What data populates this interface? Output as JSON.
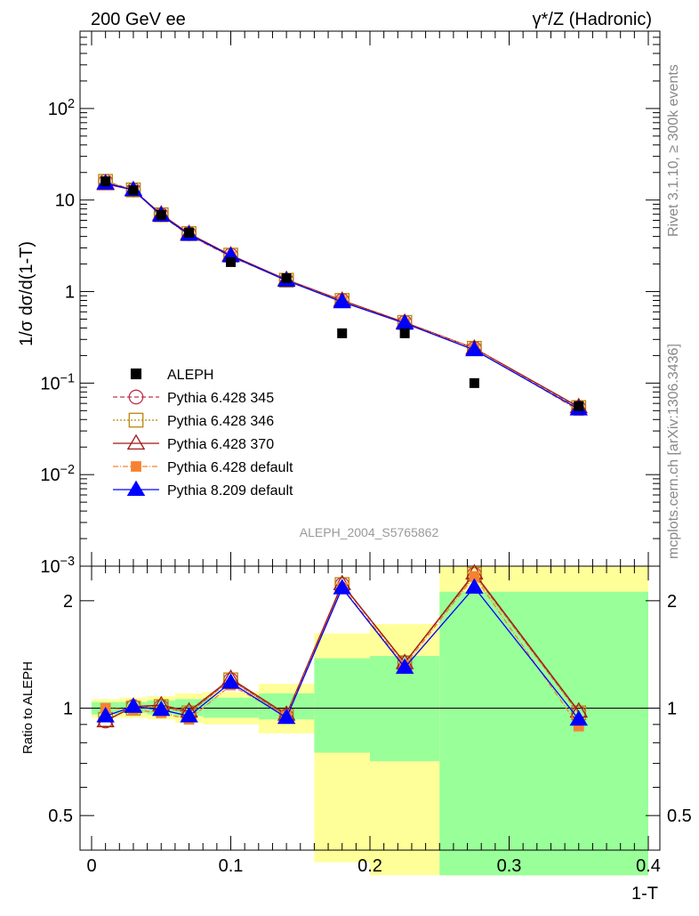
{
  "header": {
    "left": "200 GeV ee",
    "right_pre": "γ*/Z (Hadronic)"
  },
  "side_labels": {
    "top": "Rivet 3.1.10, ≥ 300k events",
    "bottom": "mcplots.cern.ch [arXiv:1306.3436]"
  },
  "chart_data": [
    {
      "type": "line",
      "scale": "log",
      "title": "ALEPH_2004_S5765862",
      "xlabel": "1-T",
      "ylabel": "1/σ  dσ/d(1-T)",
      "xlim": [
        0,
        0.4
      ],
      "ylim": [
        0.001,
        700
      ],
      "y_ticks": [
        {
          "v": 100,
          "label": "10^2"
        },
        {
          "v": 10,
          "label": "10"
        },
        {
          "v": 1,
          "label": "1"
        },
        {
          "v": 0.1,
          "label": "10^-1"
        },
        {
          "v": 0.01,
          "label": "10^-2"
        },
        {
          "v": 0.001,
          "label": "10^-3"
        }
      ],
      "x": [
        0.01,
        0.03,
        0.05,
        0.07,
        0.1,
        0.14,
        0.18,
        0.225,
        0.275,
        0.35
      ],
      "data": {
        "name": "ALEPH",
        "values": [
          16.0,
          12.8,
          6.9,
          4.4,
          2.1,
          1.4,
          0.35,
          0.35,
          0.1,
          0.056
        ]
      },
      "series": [
        {
          "name": "Pythia 6.428 345",
          "color": "#c0304a",
          "marker": "open-circle",
          "dash": "5,3",
          "values": [
            16.0,
            12.9,
            6.9,
            4.3,
            2.5,
            1.33,
            0.8,
            0.46,
            0.24,
            0.054
          ]
        },
        {
          "name": "Pythia 6.428 346",
          "color": "#b8860b",
          "marker": "open-square",
          "dash": "2,2",
          "values": [
            16.0,
            12.9,
            6.9,
            4.3,
            2.5,
            1.33,
            0.8,
            0.46,
            0.24,
            0.054
          ]
        },
        {
          "name": "Pythia 6.428 370",
          "color": "#a01818",
          "marker": "open-triangle",
          "dash": "",
          "values": [
            15.0,
            12.9,
            7.0,
            4.3,
            2.5,
            1.35,
            0.8,
            0.46,
            0.24,
            0.055
          ]
        },
        {
          "name": "Pythia 6.428 default",
          "color": "#f58231",
          "marker": "filled-square",
          "dash": "6,2,1,2",
          "values": [
            16.0,
            12.7,
            6.8,
            4.1,
            2.4,
            1.33,
            0.78,
            0.45,
            0.24,
            0.05
          ]
        },
        {
          "name": "Pythia 8.209 default",
          "color": "#0000ff",
          "marker": "filled-triangle",
          "dash": "",
          "values": [
            15.3,
            12.9,
            6.8,
            4.2,
            2.45,
            1.32,
            0.77,
            0.45,
            0.23,
            0.052
          ]
        }
      ]
    },
    {
      "type": "line",
      "scale": "log",
      "ylabel": "Ratio to ALEPH",
      "xlabel": "1-T",
      "xlim": [
        0,
        0.4
      ],
      "ylim": [
        0.4,
        2.5
      ],
      "x_ticks": [
        "0",
        "0.1",
        "0.2",
        "0.3",
        "0.4"
      ],
      "y_ticks": [
        {
          "v": 2,
          "label": "2"
        },
        {
          "v": 1,
          "label": "1"
        },
        {
          "v": 0.5,
          "label": "0.5"
        }
      ],
      "bands": [
        {
          "x0": 0.0,
          "x1": 0.02,
          "stat": [
            0.96,
            1.04
          ],
          "syst": [
            0.94,
            1.06
          ]
        },
        {
          "x0": 0.02,
          "x1": 0.04,
          "stat": [
            0.97,
            1.04
          ],
          "syst": [
            0.94,
            1.07
          ]
        },
        {
          "x0": 0.04,
          "x1": 0.06,
          "stat": [
            0.96,
            1.05
          ],
          "syst": [
            0.93,
            1.08
          ]
        },
        {
          "x0": 0.06,
          "x1": 0.08,
          "stat": [
            0.95,
            1.06
          ],
          "syst": [
            0.91,
            1.1
          ]
        },
        {
          "x0": 0.08,
          "x1": 0.12,
          "stat": [
            0.94,
            1.07
          ],
          "syst": [
            0.9,
            1.11
          ]
        },
        {
          "x0": 0.12,
          "x1": 0.16,
          "stat": [
            0.93,
            1.1
          ],
          "syst": [
            0.85,
            1.17
          ]
        },
        {
          "x0": 0.16,
          "x1": 0.2,
          "stat": [
            0.75,
            1.38
          ],
          "syst": [
            0.37,
            1.62
          ]
        },
        {
          "x0": 0.2,
          "x1": 0.25,
          "stat": [
            0.71,
            1.4
          ],
          "syst": [
            0.34,
            1.72
          ]
        },
        {
          "x0": 0.25,
          "x1": 0.4,
          "stat": [
            0.34,
            2.12
          ],
          "syst": [
            0.34,
            2.5
          ]
        }
      ],
      "series": [
        {
          "name": "Pythia 6.428 345",
          "values": [
            0.92,
            1.01,
            1.01,
            0.97,
            1.2,
            0.95,
            2.22,
            1.34,
            2.37,
            0.97
          ]
        },
        {
          "name": "Pythia 6.428 346",
          "values": [
            0.93,
            1.0,
            1.01,
            0.97,
            1.2,
            0.95,
            2.22,
            1.34,
            2.37,
            0.97
          ]
        },
        {
          "name": "Pythia 6.428 370",
          "values": [
            0.92,
            1.01,
            1.02,
            0.98,
            1.21,
            0.96,
            2.23,
            1.34,
            2.39,
            0.98
          ]
        },
        {
          "name": "Pythia 6.428 default",
          "values": [
            1.0,
            0.99,
            0.97,
            0.93,
            1.16,
            0.95,
            2.18,
            1.32,
            2.34,
            0.89
          ]
        },
        {
          "name": "Pythia 8.209 default",
          "values": [
            0.95,
            1.01,
            0.99,
            0.95,
            1.18,
            0.94,
            2.17,
            1.3,
            2.18,
            0.93
          ]
        }
      ]
    }
  ]
}
